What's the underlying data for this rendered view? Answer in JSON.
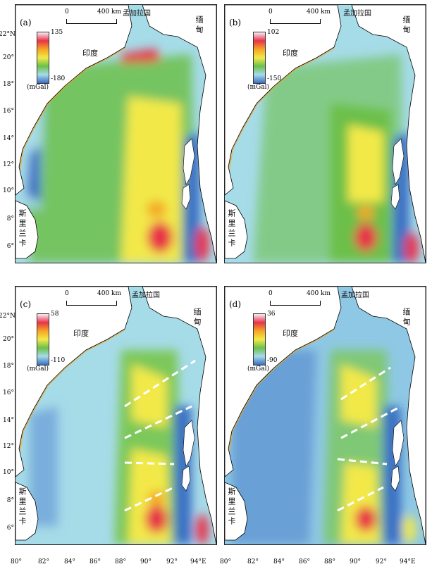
{
  "panels": [
    {
      "label": "(a)",
      "cb_max": "135",
      "cb_min": "-180",
      "cb_unit": "(mGal)"
    },
    {
      "label": "(b)",
      "cb_max": "102",
      "cb_min": "-150",
      "cb_unit": "(mGal)"
    },
    {
      "label": "(c)",
      "cb_max": "58",
      "cb_min": "-110",
      "cb_unit": "(mGal)"
    },
    {
      "label": "(d)",
      "cb_max": "36",
      "cb_min": "-90",
      "cb_unit": "(mGal)"
    }
  ],
  "labels": {
    "india": "印度",
    "bangladesh": "孟加拉国",
    "myanmar": "缅甸",
    "srilanka": "斯里兰卡",
    "scale_zero": "0",
    "scale_dist": "400 km"
  },
  "y_ticks": [
    "22°N",
    "20°",
    "18°",
    "16°",
    "14°",
    "12°",
    "10°",
    "8°",
    "6°"
  ],
  "x_ticks": [
    "80°",
    "82°",
    "84°",
    "86°",
    "88°",
    "90°",
    "92°",
    "94°E"
  ],
  "colors": {
    "colorbar": [
      "#f6eef4",
      "#e8334a",
      "#f5a623",
      "#f2e94a",
      "#6cc04a",
      "#a6dbe8",
      "#3a6fc4"
    ],
    "land": "#ffffff",
    "fault_lines": "#ffffff"
  }
}
